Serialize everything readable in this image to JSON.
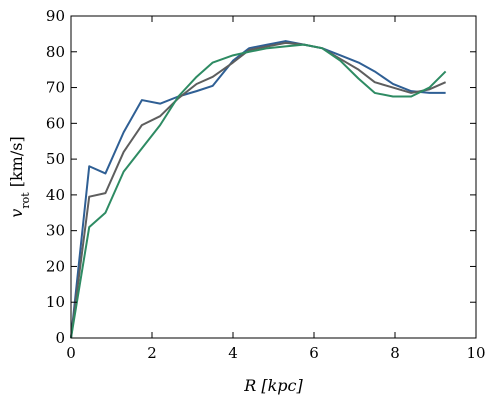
{
  "chart_data": {
    "type": "line",
    "xlabel": "R [kpc]",
    "ylabel": "v_rot [km/s]",
    "xlim": [
      0,
      10
    ],
    "ylim": [
      0,
      90
    ],
    "xticks": [
      0,
      2,
      4,
      6,
      8,
      10
    ],
    "yticks": [
      0,
      10,
      20,
      30,
      40,
      50,
      60,
      70,
      80,
      90
    ],
    "grid": false,
    "series": [
      {
        "color": "#2f5f94",
        "x": [
          0,
          0.45,
          0.85,
          1.3,
          1.75,
          2.2,
          2.65,
          3.1,
          3.5,
          4.0,
          4.4,
          4.85,
          5.3,
          5.75,
          6.2,
          6.65,
          7.1,
          7.5,
          7.95,
          8.4,
          8.85,
          9.25
        ],
        "y": [
          0,
          48,
          46,
          57.5,
          66.5,
          65.5,
          67.5,
          69,
          70.5,
          77.5,
          81,
          82,
          83,
          82,
          81,
          79,
          77,
          74.5,
          71,
          69,
          68.5,
          68.5
        ]
      },
      {
        "color": "#5e5e5e",
        "x": [
          0,
          0.45,
          0.85,
          1.3,
          1.75,
          2.2,
          2.65,
          3.1,
          3.5,
          4.0,
          4.4,
          4.85,
          5.3,
          5.75,
          6.2,
          6.65,
          7.1,
          7.5,
          7.95,
          8.4,
          8.85,
          9.25
        ],
        "y": [
          0,
          39.5,
          40.5,
          52,
          59.5,
          62,
          67,
          71,
          73,
          77,
          80.5,
          81.5,
          82.5,
          82,
          81,
          78,
          75,
          71.5,
          70,
          68.5,
          69.5,
          71.5
        ]
      },
      {
        "color": "#2e8b63",
        "x": [
          0,
          0.45,
          0.85,
          1.3,
          1.75,
          2.2,
          2.65,
          3.1,
          3.5,
          4.0,
          4.4,
          4.85,
          5.3,
          5.75,
          6.2,
          6.65,
          7.1,
          7.5,
          7.95,
          8.4,
          8.85,
          9.25
        ],
        "y": [
          0,
          31,
          35,
          46.5,
          53,
          59.5,
          67.5,
          73,
          77,
          79,
          80,
          81,
          81.5,
          82,
          81,
          77.5,
          72.5,
          68.5,
          67.5,
          67.5,
          70,
          74.5
        ]
      }
    ]
  }
}
